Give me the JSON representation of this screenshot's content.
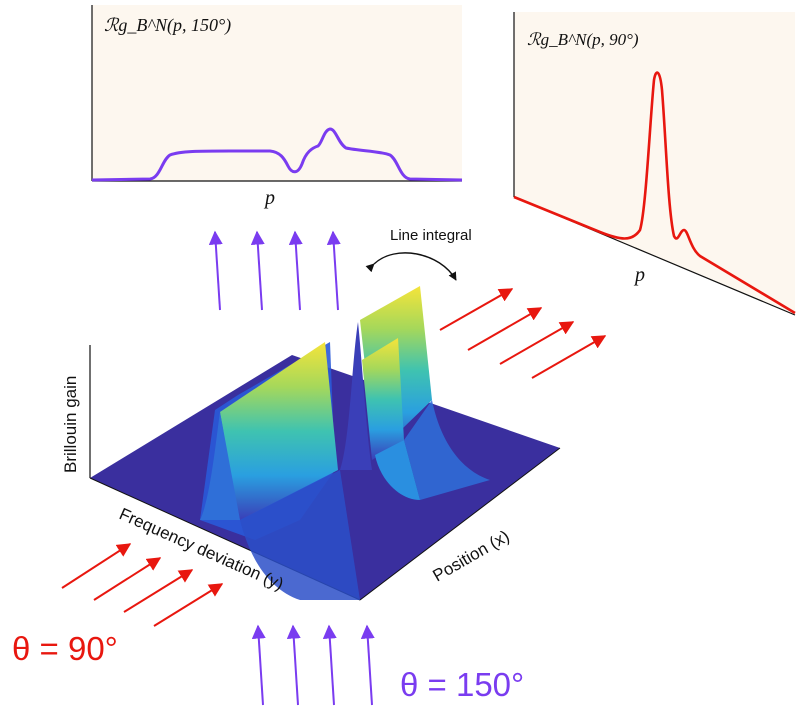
{
  "top_left_panel": {
    "title": "ℛg_B^N(p, 150°)",
    "xlabel": "p"
  },
  "top_right_panel": {
    "title": "ℛg_B^N(p, 90°)",
    "xlabel": "p"
  },
  "line_integral_label": "Line integral",
  "surface_axes": {
    "z_label": "Brillouin gain",
    "y_label": "Frequency deviation (y)",
    "x_label": "Position (x)"
  },
  "angle_labels": {
    "red": "θ = 90°",
    "purple": "θ = 150°"
  },
  "colors": {
    "red": "#e8170f",
    "purple": "#7a3cf0",
    "panel_bg": "#fdf7ef",
    "surface_base": "#3a2fa0",
    "surface_yellow": "#f4e23a",
    "surface_cyan": "#2ab3d6",
    "surface_blue": "#2f5ad8"
  },
  "icons": [
    "arrow-icon",
    "curved-double-arrow-icon"
  ]
}
